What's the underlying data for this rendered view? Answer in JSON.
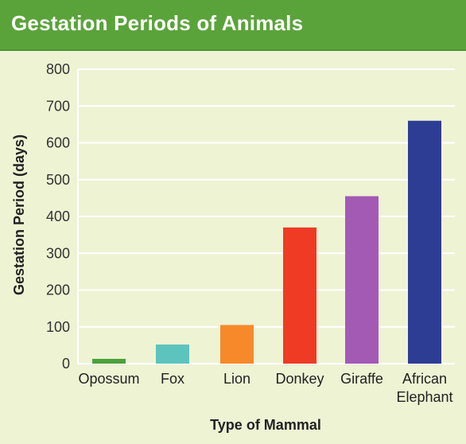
{
  "chart_data": {
    "type": "bar",
    "title": "Gestation Periods of Animals",
    "xlabel": "Type of Mammal",
    "ylabel": "Gestation Period (days)",
    "categories": [
      [
        "Opossum"
      ],
      [
        "Fox"
      ],
      [
        "Lion"
      ],
      [
        "Donkey"
      ],
      [
        "Giraffe"
      ],
      [
        "African",
        "Elephant"
      ]
    ],
    "values": [
      13,
      52,
      105,
      370,
      455,
      660
    ],
    "colors": [
      "#4aa23a",
      "#5cc4bd",
      "#f7892a",
      "#ef3b24",
      "#a35ab5",
      "#2e3d94"
    ],
    "ylim": [
      0,
      800
    ],
    "yticks": [
      0,
      100,
      200,
      300,
      400,
      500,
      600,
      700,
      800
    ],
    "grid": true
  },
  "colors": {
    "title_bar": "#5aa33a",
    "background": "#eef3d4",
    "grid": "#ffffff"
  }
}
